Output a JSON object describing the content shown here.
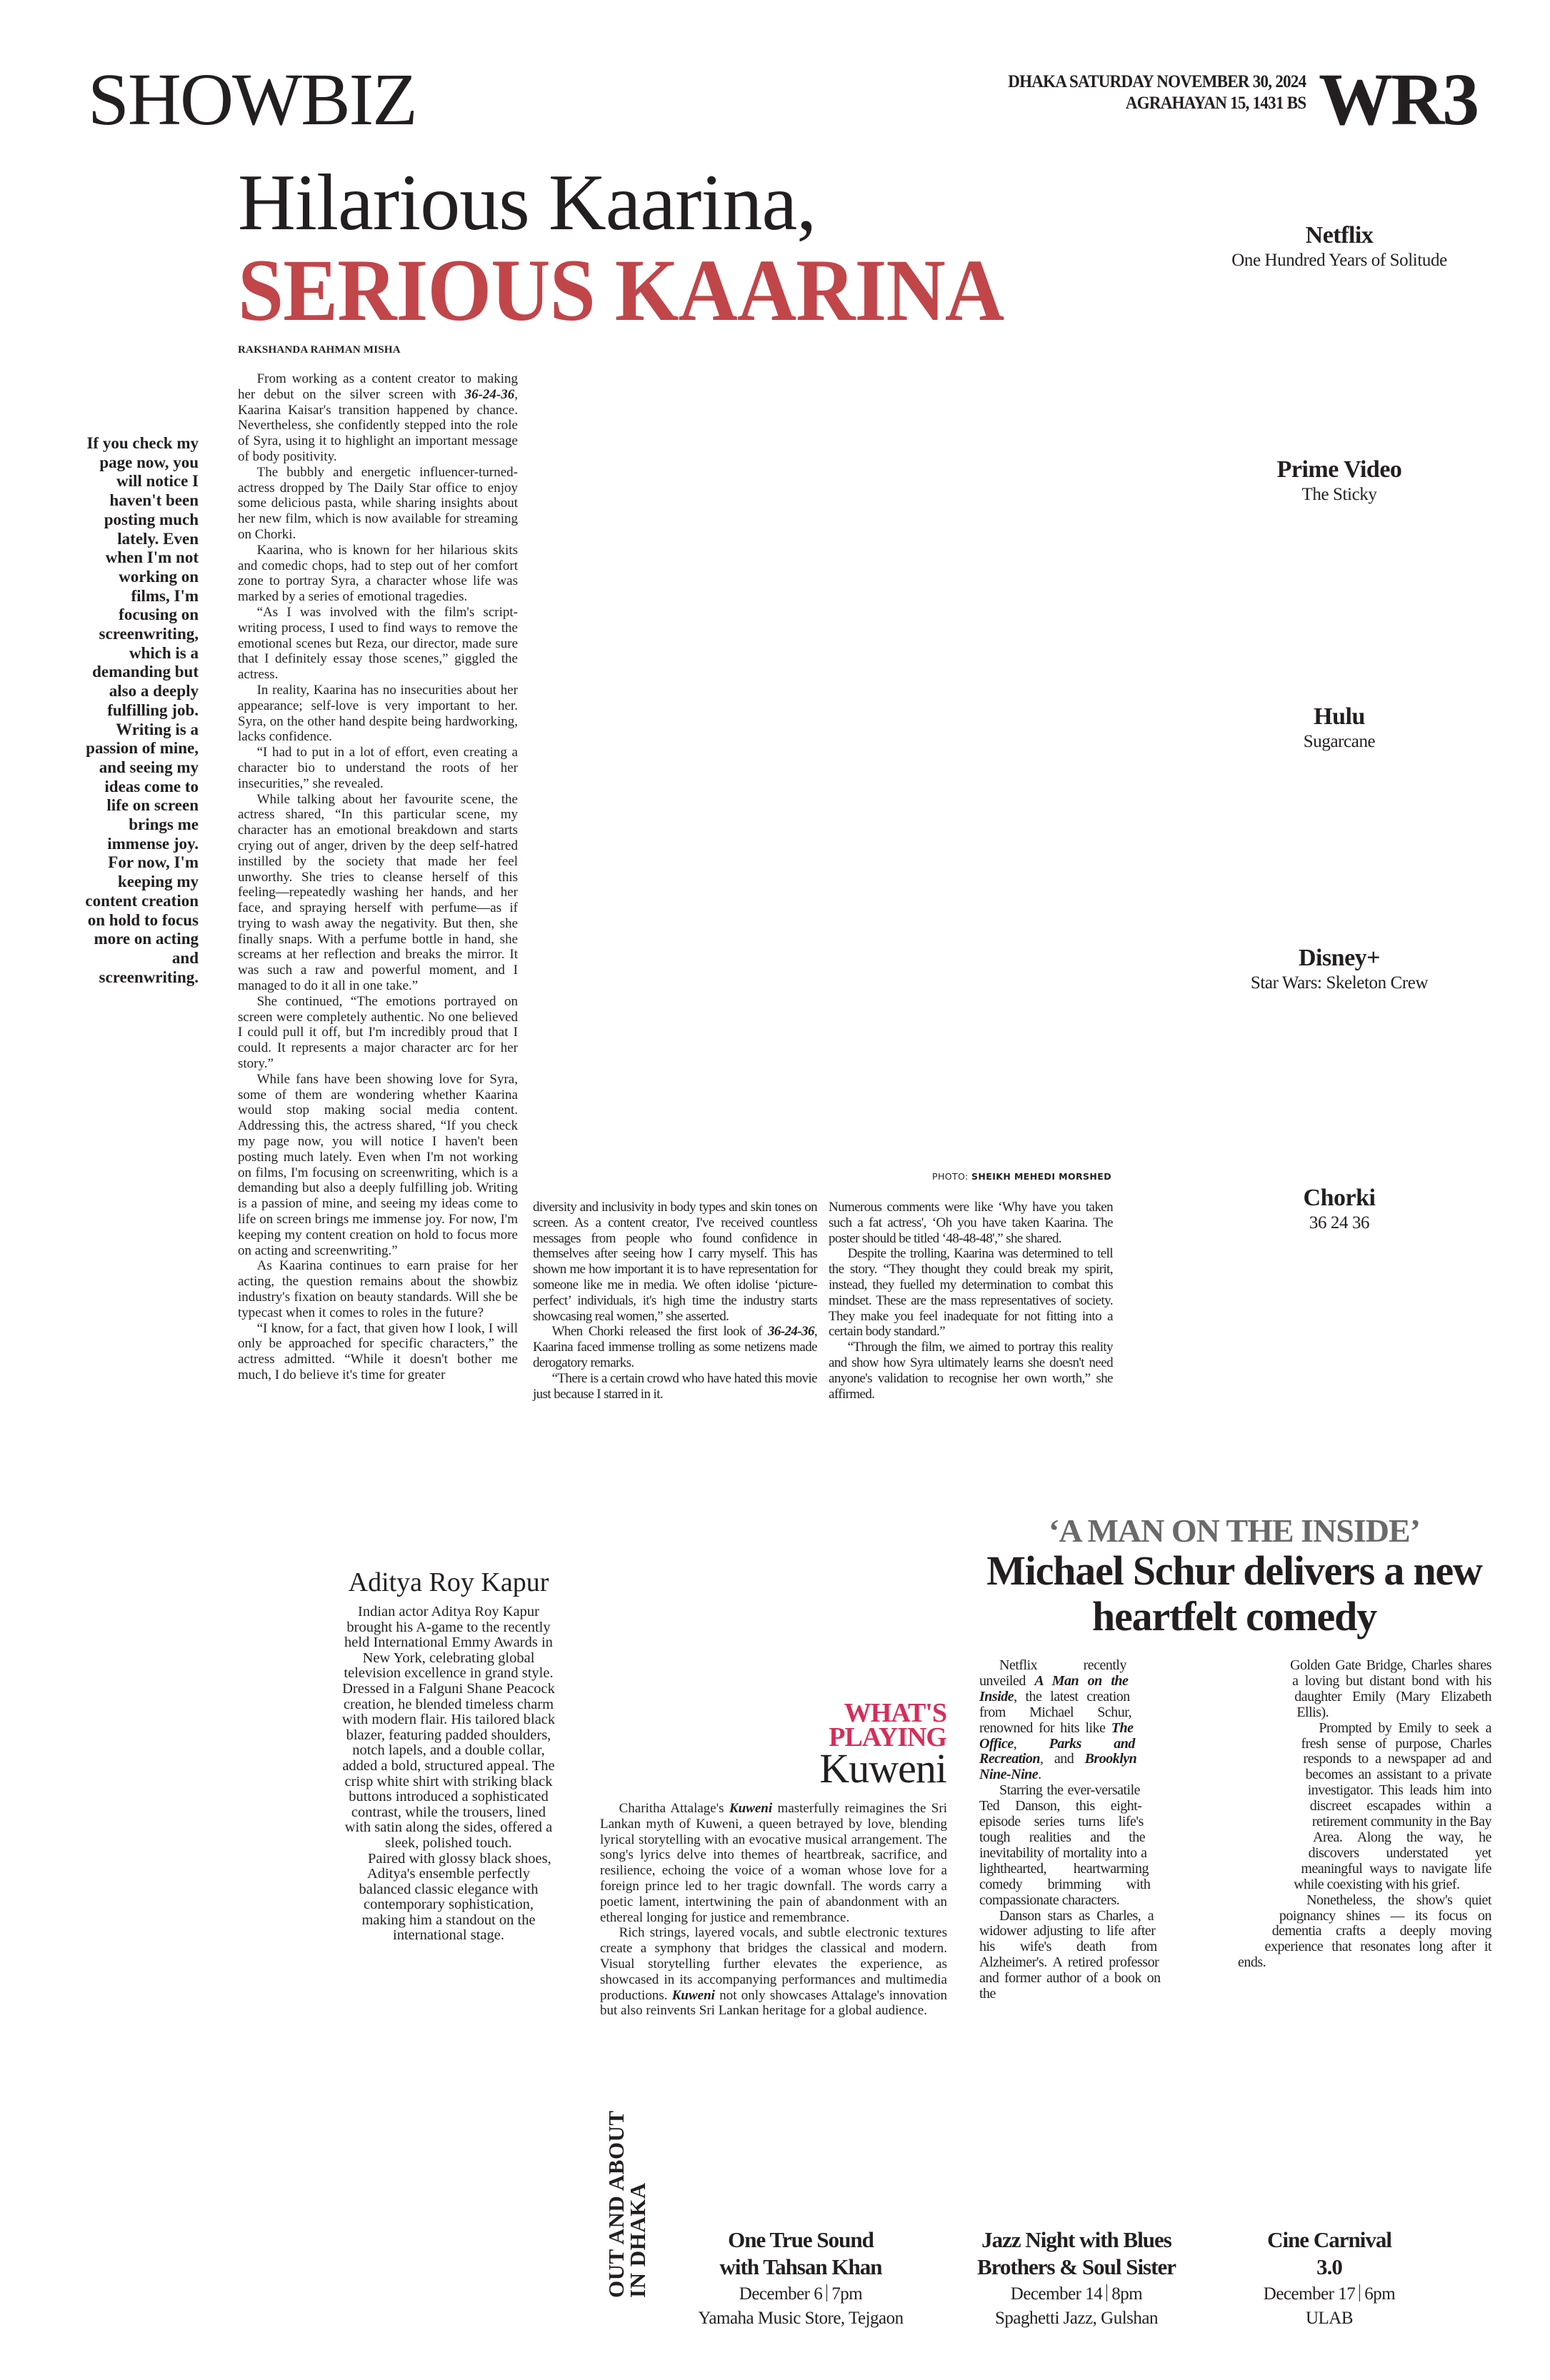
{
  "header": {
    "section": "SHOWBIZ",
    "date_line1": "DHAKA SATURDAY NOVEMBER 30, 2024",
    "date_line2": "AGRAHAYAN 15, 1431 BS",
    "page": "WR3"
  },
  "colors": {
    "headline_red": "#c0464a",
    "whats_playing": "#d42e5a",
    "kicker_gray": "#6a6a6a"
  },
  "lead": {
    "headline_line1": "Hilarious Kaarina,",
    "headline_line2": "SERIOUS KAARINA",
    "byline": "RAKSHANDA RAHMAN MISHA",
    "photo_credit_label": "PHOTO: ",
    "photo_credit_name": "SHEIKH MEHEDI MORSHED",
    "pull_quote": "If you check my page now, you will notice I haven't been posting much lately. Even when I'm not working on films, I'm focusing on screenwriting, which is a demanding but also a deeply fulfilling job. Writing is a passion of mine, and seeing my ideas come to life on screen brings me immense joy. For now, I'm keeping my content creation on hold to focus more on acting and screenwriting.",
    "col1": [
      [
        {
          "t": "From working as a content creator to making her debut on the silver screen with "
        },
        {
          "t": "36-24-36",
          "em": true
        },
        {
          "t": ", Kaarina Kaisar's transition happened by chance. Nevertheless, she confidently stepped into the role of Syra, using it to highlight an important message of body positivity."
        }
      ],
      [
        {
          "t": "The bubbly and energetic influencer-turned-actress dropped by The Daily Star office to enjoy some delicious pasta, while sharing insights about her new film, which is now available for streaming on Chorki."
        }
      ],
      [
        {
          "t": "Kaarina, who is known for her hilarious skits and comedic chops, had to step out of her comfort zone to portray Syra, a character whose life was marked by a series of emotional tragedies."
        }
      ],
      [
        {
          "t": "“As I was involved with the film's script-writing process, I used to find ways to remove the emotional scenes but Reza, our director, made sure that I definitely essay those scenes,” giggled the actress."
        }
      ],
      [
        {
          "t": "In reality, Kaarina has no insecurities about her appearance; self-love is very important to her. Syra, on the other hand despite being hardworking, lacks confidence."
        }
      ],
      [
        {
          "t": "“I had to put in a lot of effort, even creating a character bio to understand the roots of her insecurities,” she revealed."
        }
      ],
      [
        {
          "t": "While talking about her favourite scene, the actress shared, “In this particular scene, my character has an emotional breakdown and starts crying out of anger, driven by the deep self-hatred instilled by the society that made her feel unworthy. She tries to cleanse herself of this feeling—repeatedly washing her hands, and her face, and spraying herself with perfume—as if trying to wash away the negativity. But then, she finally snaps. With a perfume bottle in hand, she screams at her reflection and breaks the mirror. It was such a raw and powerful moment, and I managed to do it all in one take.”"
        }
      ],
      [
        {
          "t": "She continued, “The emotions portrayed on screen were completely authentic. No one believed I could pull it off, but I'm incredibly proud that I could. It represents a major character arc for her story.”"
        }
      ],
      [
        {
          "t": "While fans have been showing love for Syra, some of them are wondering whether Kaarina would stop making social media content. Addressing this, the actress shared, “If you check my page now, you will notice I haven't been posting much lately. Even when I'm not working on films, I'm focusing on screenwriting, which is a demanding but also a deeply fulfilling job. Writing is a passion of mine, and seeing my ideas come to life on screen brings me immense joy. For now, I'm keeping my content creation on hold to focus more on acting and screenwriting.”"
        }
      ],
      [
        {
          "t": "As Kaarina continues to earn praise for her acting, the question remains about the showbiz industry's fixation on beauty standards. Will she be typecast when it comes to roles in the future?"
        }
      ],
      [
        {
          "t": "“I know, for a fact, that given how I look, I will only be approached for specific characters,” the actress admitted. “While it doesn't bother me much, I do believe it's time for greater"
        }
      ]
    ],
    "col2": [
      [
        {
          "t": "diversity and inclusivity in body types and skin tones on screen. As a content creator, I've received countless messages from people who found confidence in themselves after seeing how I carry myself. This has shown me how important it is to have representation for someone like me in media. We often idolise ‘picture-perfect’ individuals, it's high time the industry starts showcasing real women,” she asserted."
        }
      ],
      [
        {
          "t": "When Chorki released the first look of "
        },
        {
          "t": "36-24-36",
          "em": true
        },
        {
          "t": ", Kaarina faced immense trolling as some netizens made derogatory remarks."
        }
      ],
      [
        {
          "t": "“There is a certain crowd who have hated this movie just because I starred in it."
        }
      ]
    ],
    "col3": [
      [
        {
          "t": "Numerous comments were like ‘Why have you taken such a fat actress', ‘Oh you have taken Kaarina. The poster should be titled ‘48-48-48',” she shared."
        }
      ],
      [
        {
          "t": "Despite the trolling, Kaarina was determined to tell the story. “They thought they could break my spirit, instead, they fuelled my determination to combat this mindset. These are the mass representatives of society. They make you feel inadequate for not fitting into a certain body standard.”"
        }
      ],
      [
        {
          "t": "“Through the film, we aimed to portray this reality and show how Syra ultimately learns she doesn't need anyone's validation to recognise her own worth,” she affirmed."
        }
      ]
    ]
  },
  "streaming": [
    {
      "platform": "Netflix",
      "title": "One Hundred Years of Solitude"
    },
    {
      "platform": "Prime Video",
      "title": "The Sticky"
    },
    {
      "platform": "Hulu",
      "title": "Sugarcane"
    },
    {
      "platform": "Disney+",
      "title": "Star Wars: Skeleton Crew"
    },
    {
      "platform": "Chorki",
      "title": "36 24 36"
    }
  ],
  "aditya": {
    "title": "Aditya Roy Kapur",
    "paragraphs": [
      [
        {
          "t": "Indian actor Aditya Roy Kapur brought his A-game to the recently held International Emmy Awards in New York, celebrating global television excellence in grand style. Dressed in a Falguni Shane Peacock creation, he blended timeless charm with modern flair. His tailored black blazer, featuring padded shoulders, notch lapels, and a double collar, added a bold, structured appeal. The crisp white shirt with striking black buttons introduced a sophisticated contrast, while the trousers, lined with satin along the sides, offered a sleek, polished touch."
        }
      ],
      [
        {
          "t": "Paired with glossy black shoes, Aditya's ensemble perfectly balanced classic elegance with contemporary sophistication, making him a standout on the international stage."
        }
      ]
    ]
  },
  "kuweni": {
    "kicker": "WHAT'S PLAYING",
    "title": "Kuweni",
    "paragraphs": [
      [
        {
          "t": "Charitha Attalage's "
        },
        {
          "t": "Kuweni",
          "em": true
        },
        {
          "t": " masterfully reimagines the Sri Lankan myth of Kuweni, a queen betrayed by love, blending lyrical storytelling with an evocative musical arrangement. The song's lyrics delve into themes of heartbreak, sacrifice, and resilience, echoing the voice of a woman whose love for a foreign prince led to her tragic downfall. The words carry a poetic lament, intertwining the pain of abandonment with an ethereal longing for justice and remembrance."
        }
      ],
      [
        {
          "t": "Rich strings, layered vocals, and subtle electronic textures create a symphony that bridges the classical and modern. Visual storytelling further elevates the experience, as showcased in its accompanying performances and multimedia productions. "
        },
        {
          "t": "Kuweni",
          "em": true
        },
        {
          "t": " not only showcases Attalage's innovation but also reinvents Sri Lankan heritage for a global audience."
        }
      ]
    ]
  },
  "man_inside": {
    "kicker": "‘A MAN ON THE INSIDE’",
    "headline": "Michael Schur delivers a new heartfelt comedy",
    "col1": [
      [
        {
          "t": "Netflix recently unveiled "
        },
        {
          "t": "A Man on the Inside",
          "em": true
        },
        {
          "t": ", the latest creation from Michael Schur, renowned for hits like "
        },
        {
          "t": "The Office",
          "em": true
        },
        {
          "t": ", "
        },
        {
          "t": "Parks and Recreation",
          "em": true
        },
        {
          "t": ", and "
        },
        {
          "t": "Brooklyn Nine-Nine",
          "em": true
        },
        {
          "t": "."
        }
      ],
      [
        {
          "t": "Starring the ever-versatile Ted Danson, this eight-episode series turns life's tough realities and the inevitability of mortality into a lighthearted, heartwarming comedy brimming with compassionate characters."
        }
      ],
      [
        {
          "t": "Danson stars as Charles, a widower adjusting to life after his wife's death from Alzheimer's. A retired professor and former author of a book on the"
        }
      ]
    ],
    "col2": [
      [
        {
          "t": "Golden Gate Bridge, Charles shares a loving but distant bond with his daughter Emily (Mary Elizabeth Ellis)."
        }
      ],
      [
        {
          "t": "Prompted by Emily to seek a fresh sense of purpose, Charles responds to a newspaper ad and becomes an assistant to a private investigator. This leads him into discreet escapades within a retirement community in the Bay Area. Along the way, he discovers understated yet meaningful ways to navigate life while coexisting with his grief."
        }
      ],
      [
        {
          "t": "Nonetheless, the show's quiet poignancy shines — its focus on dementia crafts a deeply moving experience that resonates long after it ends."
        }
      ]
    ]
  },
  "events": {
    "section_title": "OUT AND ABOUT IN DHAKA",
    "items": [
      {
        "title": "One True Sound with Tahsan Khan",
        "date": "December 6",
        "time": "7pm",
        "venue": "Yamaha Music Store, Tejgaon"
      },
      {
        "title": "Jazz Night with Blues Brothers & Soul Sister",
        "date": "December 14",
        "time": "8pm",
        "venue": "Spaghetti Jazz, Gulshan"
      },
      {
        "title": "Cine Carnival 3.0",
        "date": "December 17",
        "time": "6pm",
        "venue": "ULAB"
      }
    ]
  }
}
